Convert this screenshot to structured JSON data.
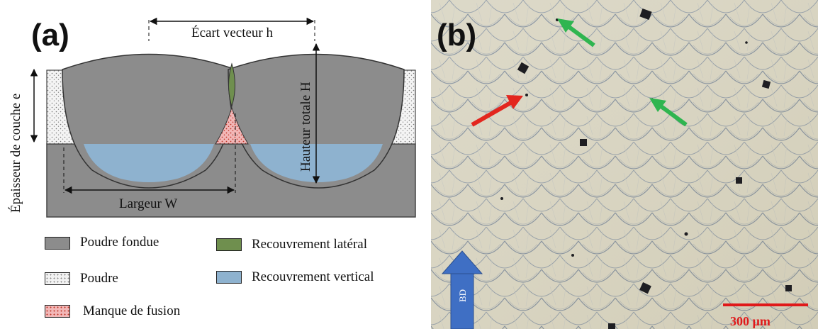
{
  "panel_a": {
    "label": "(a)",
    "top_dimension_label": "Écart vecteur h",
    "height_label": "Hauteur totale H",
    "layer_label": "Épaisseur de couche e",
    "width_label": "Largeur W",
    "legend": [
      {
        "label": "Poudre fondue",
        "color": "#8c8c8c",
        "pattern": "solid"
      },
      {
        "label": "Recouvrement latéral",
        "color": "#6f8f4e",
        "pattern": "solid"
      },
      {
        "label": "Poudre",
        "color": "#ececec",
        "pattern": "dots"
      },
      {
        "label": "Recouvrement vertical",
        "color": "#8eb2cf",
        "pattern": "solid"
      },
      {
        "label": "Manque de fusion",
        "color": "#e8a0a0",
        "pattern": "dots"
      }
    ]
  },
  "panel_b": {
    "label": "(b)",
    "scale_bar_label": "300 µm",
    "build_direction_label": "BD",
    "colors": {
      "background": "#d9d6c3",
      "red_arrow": "#e3261e",
      "green_arrow": "#2fb550",
      "scale_bar": "#e0191a",
      "bd_arrow": "#3f6fc4"
    }
  }
}
